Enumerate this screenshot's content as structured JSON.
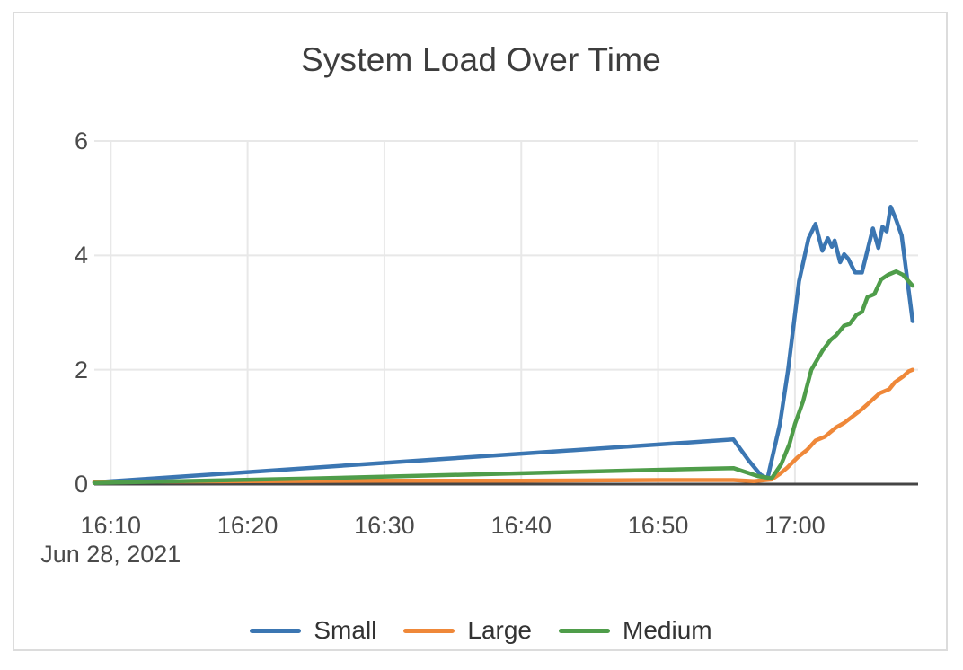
{
  "chart_data": {
    "type": "line",
    "title": "System Load Over Time",
    "x_axis": {
      "tick_labels": [
        "16:10",
        "16:20",
        "16:30",
        "16:40",
        "16:50",
        "17:00"
      ],
      "tick_minutes": [
        10,
        20,
        30,
        40,
        50,
        60
      ],
      "date_label": "Jun 28, 2021",
      "range_minutes": [
        8.8,
        69.0
      ],
      "unit": "time of day"
    },
    "y_axis": {
      "tick_labels": [
        "0",
        "2",
        "4",
        "6"
      ],
      "tick_values": [
        0,
        2,
        4,
        6
      ],
      "range": [
        0,
        6
      ]
    },
    "grid": true,
    "legend_position": "bottom",
    "colors": {
      "grid": "#e8e8e8",
      "axis_line": "#454545",
      "title_text": "#3d3d3d",
      "tick_text": "#4a4a4a",
      "legend_text": "#333333"
    },
    "series": [
      {
        "name": "Small",
        "color": "#3b76b2",
        "points": [
          [
            8.8,
            0.03
          ],
          [
            55.5,
            0.78
          ],
          [
            56.6,
            0.42
          ],
          [
            57.5,
            0.16
          ],
          [
            58.0,
            0.1
          ],
          [
            58.9,
            1.05
          ],
          [
            59.5,
            2.0
          ],
          [
            60.3,
            3.55
          ],
          [
            61.0,
            4.3
          ],
          [
            61.5,
            4.55
          ],
          [
            62.0,
            4.08
          ],
          [
            62.4,
            4.3
          ],
          [
            62.7,
            4.15
          ],
          [
            62.9,
            4.26
          ],
          [
            63.3,
            3.88
          ],
          [
            63.6,
            4.02
          ],
          [
            63.9,
            3.94
          ],
          [
            64.4,
            3.7
          ],
          [
            64.9,
            3.7
          ],
          [
            65.7,
            4.47
          ],
          [
            66.1,
            4.13
          ],
          [
            66.4,
            4.5
          ],
          [
            66.7,
            4.42
          ],
          [
            67.0,
            4.85
          ],
          [
            67.4,
            4.62
          ],
          [
            67.8,
            4.35
          ],
          [
            68.6,
            2.85
          ]
        ]
      },
      {
        "name": "Large",
        "color": "#ef8839",
        "points": [
          [
            8.8,
            0.04
          ],
          [
            20,
            0.05
          ],
          [
            30,
            0.06
          ],
          [
            40,
            0.06
          ],
          [
            50,
            0.07
          ],
          [
            55.5,
            0.07
          ],
          [
            57.0,
            0.05
          ],
          [
            58.3,
            0.08
          ],
          [
            58.9,
            0.18
          ],
          [
            59.4,
            0.28
          ],
          [
            60.2,
            0.47
          ],
          [
            60.9,
            0.6
          ],
          [
            61.5,
            0.76
          ],
          [
            62.2,
            0.83
          ],
          [
            63.0,
            0.99
          ],
          [
            63.6,
            1.07
          ],
          [
            64.3,
            1.2
          ],
          [
            64.9,
            1.31
          ],
          [
            65.6,
            1.46
          ],
          [
            66.2,
            1.59
          ],
          [
            66.9,
            1.66
          ],
          [
            67.3,
            1.78
          ],
          [
            67.9,
            1.88
          ],
          [
            68.3,
            1.97
          ],
          [
            68.6,
            2.0
          ]
        ]
      },
      {
        "name": "Medium",
        "color": "#4f9d4a",
        "points": [
          [
            8.8,
            0.02
          ],
          [
            15,
            0.05
          ],
          [
            25,
            0.1
          ],
          [
            35,
            0.16
          ],
          [
            45,
            0.22
          ],
          [
            52,
            0.26
          ],
          [
            55.5,
            0.28
          ],
          [
            57.3,
            0.14
          ],
          [
            58.3,
            0.1
          ],
          [
            59.0,
            0.35
          ],
          [
            59.6,
            0.7
          ],
          [
            60.0,
            1.05
          ],
          [
            60.6,
            1.45
          ],
          [
            61.2,
            2.0
          ],
          [
            62.0,
            2.33
          ],
          [
            62.6,
            2.52
          ],
          [
            63.0,
            2.6
          ],
          [
            63.6,
            2.77
          ],
          [
            64.0,
            2.8
          ],
          [
            64.5,
            2.96
          ],
          [
            64.9,
            3.01
          ],
          [
            65.3,
            3.27
          ],
          [
            65.8,
            3.32
          ],
          [
            66.3,
            3.58
          ],
          [
            66.8,
            3.66
          ],
          [
            67.4,
            3.72
          ],
          [
            67.9,
            3.66
          ],
          [
            68.6,
            3.47
          ]
        ]
      }
    ]
  }
}
